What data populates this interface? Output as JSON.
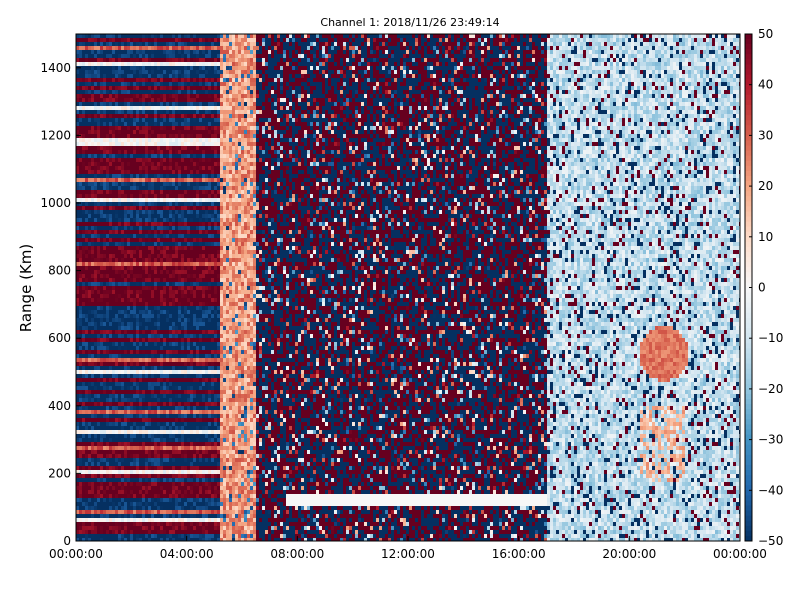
{
  "chart_data": {
    "type": "heatmap",
    "title": "Channel 1: 2018/11/26 23:49:14",
    "xlabel": "",
    "ylabel": "Range (Km)",
    "xlim": [
      "00:00:00",
      "00:00:00"
    ],
    "ylim": [
      0,
      1500
    ],
    "x_ticks": [
      {
        "label": "00:00:00",
        "hours": 0
      },
      {
        "label": "04:00:00",
        "hours": 4
      },
      {
        "label": "08:00:00",
        "hours": 8
      },
      {
        "label": "12:00:00",
        "hours": 12
      },
      {
        "label": "16:00:00",
        "hours": 16
      },
      {
        "label": "20:00:00",
        "hours": 20
      },
      {
        "label": "00:00:00",
        "hours": 24
      }
    ],
    "y_ticks": [
      0,
      200,
      400,
      600,
      800,
      1000,
      1200,
      1400
    ],
    "colorbar": {
      "min": -50,
      "max": 50,
      "ticks": [
        50,
        40,
        30,
        20,
        10,
        0,
        -10,
        -20,
        -30,
        -40,
        -50
      ],
      "colormap": "RdBu_r"
    },
    "colors": {
      "low": "#053061",
      "mid": "#f7f7f7",
      "high": "#67001f"
    },
    "grid": false,
    "value_range_note_regions": [
      {
        "from_hours": 0.0,
        "to_hours": 5.1,
        "pattern": "horizontal banding alternating about +50 and -50"
      },
      {
        "from_hours": 5.1,
        "to_hours": 6.5,
        "pattern": "mostly about +10 to +30"
      },
      {
        "from_hours": 6.5,
        "to_hours": 17.0,
        "pattern": "random noise about -50 to +50"
      },
      {
        "from_hours": 17.0,
        "to_hours": 24.0,
        "pattern": "mostly about -30 to -10 with a positive patch about +20 to +30 near 21:00"
      }
    ]
  }
}
